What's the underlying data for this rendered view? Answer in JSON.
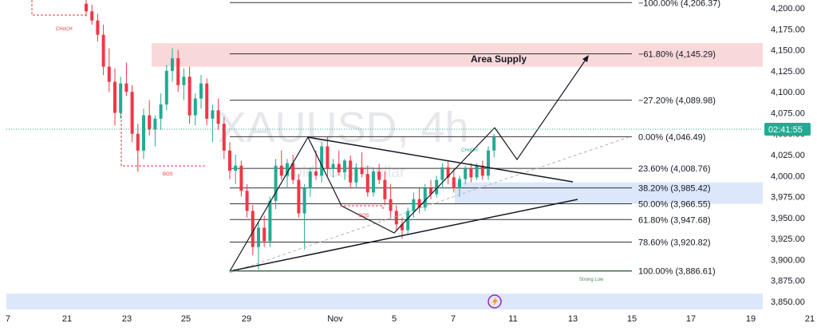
{
  "colors": {
    "up": "#22ab94",
    "down": "#f23645",
    "fib_line": "#333333",
    "supply_zone": "#f8d4d6",
    "demand_zone": "#d8e4fb",
    "price_tag": "#22ab94",
    "watermark": "#d1d4dc",
    "pattern": "#131722",
    "trend_dashed": "#b2b5be",
    "event_icon": "#9c27b0"
  },
  "watermark": {
    "symbol": "XAUUSD, 4h",
    "subtitle": "Gold / U.S. Dollar"
  },
  "price_tag": {
    "label": "02:41:55",
    "price": 4046.49
  },
  "area_supply": {
    "label": "Area Supply",
    "from": 4130,
    "to": 4158
  },
  "demand_zone": {
    "from": 3966.5,
    "to": 3992
  },
  "labels": {
    "choch_top": "CHoCH",
    "bos_left": "BOS",
    "bos_right": "BOS",
    "choch_right": "CHoCH",
    "strong_low": "Strong Low"
  },
  "event_icon": "lightning-event-icon",
  "chart_data": {
    "type": "candlestick",
    "symbol": "XAUUSD",
    "timeframe": "4h",
    "x_tick_labels": [
      "7",
      "21",
      "23",
      "25",
      "29",
      "Nov",
      "5",
      "7",
      "11",
      "13",
      "15",
      "17",
      "19",
      "21"
    ],
    "y_tick_labels": [
      "3,850.00",
      "3,875.00",
      "3,900.00",
      "3,925.00",
      "3,950.00",
      "3,975.00",
      "4,000.00",
      "4,025.00",
      "4,050.00",
      "4,075.00",
      "4,100.00",
      "4,125.00",
      "4,150.00",
      "4,175.00",
      "4,200.00"
    ],
    "y_ticks": [
      3850,
      3875,
      3900,
      3925,
      3950,
      3975,
      4000,
      4025,
      4050,
      4075,
      4100,
      4125,
      4150,
      4175,
      4200
    ],
    "ylim": [
      3840,
      4212
    ],
    "fibonacci": [
      {
        "label": "−100.00% (4,206.37)",
        "price": 4206.37
      },
      {
        "label": "−61.80% (4,145.29)",
        "price": 4145.29
      },
      {
        "label": "−27.20% (4,089.98)",
        "price": 4089.98
      },
      {
        "label": "0.00% (4,046.49)",
        "price": 4046.49
      },
      {
        "label": "23.60% (4,008.76)",
        "price": 4008.76
      },
      {
        "label": "38.20% (3,985.42)",
        "price": 3985.42
      },
      {
        "label": "50.00% (3,966.55)",
        "price": 3966.55
      },
      {
        "label": "61.80% (3,947.68)",
        "price": 3947.68
      },
      {
        "label": "78.60% (3,920.82)",
        "price": 3920.82
      },
      {
        "label": "100.00% (3,886.61)",
        "price": 3886.61
      }
    ],
    "candles_ohlc": [
      [
        4205,
        4218,
        4190,
        4196
      ],
      [
        4196,
        4204,
        4180,
        4185
      ],
      [
        4185,
        4193,
        4160,
        4168
      ],
      [
        4168,
        4180,
        4120,
        4130
      ],
      [
        4130,
        4152,
        4100,
        4112
      ],
      [
        4112,
        4128,
        4060,
        4075
      ],
      [
        4075,
        4118,
        4068,
        4110
      ],
      [
        4110,
        4135,
        4095,
        4100
      ],
      [
        4100,
        4108,
        4040,
        4050
      ],
      [
        4050,
        4062,
        4005,
        4030
      ],
      [
        4030,
        4080,
        4020,
        4072
      ],
      [
        4072,
        4090,
        4048,
        4055
      ],
      [
        4055,
        4072,
        4035,
        4068
      ],
      [
        4068,
        4098,
        4055,
        4085
      ],
      [
        4085,
        4132,
        4078,
        4125
      ],
      [
        4125,
        4152,
        4112,
        4140
      ],
      [
        4140,
        4150,
        4100,
        4108
      ],
      [
        4108,
        4128,
        4090,
        4118
      ],
      [
        4118,
        4130,
        4062,
        4072
      ],
      [
        4072,
        4098,
        4060,
        4092
      ],
      [
        4092,
        4120,
        4080,
        4110
      ],
      [
        4110,
        4116,
        4060,
        4068
      ],
      [
        4068,
        4085,
        4040,
        4078
      ],
      [
        4078,
        4092,
        4055,
        4062
      ],
      [
        4062,
        4070,
        4020,
        4030
      ],
      [
        4030,
        4040,
        3996,
        4006
      ],
      [
        4006,
        4025,
        3990,
        4012
      ],
      [
        4012,
        4018,
        3975,
        3982
      ],
      [
        3982,
        3990,
        3950,
        3958
      ],
      [
        3958,
        3965,
        3905,
        3915
      ],
      [
        3915,
        3945,
        3888,
        3938
      ],
      [
        3938,
        3952,
        3915,
        3922
      ],
      [
        3922,
        3975,
        3915,
        3970
      ],
      [
        3970,
        4020,
        3960,
        4012
      ],
      [
        4012,
        4030,
        3995,
        4000
      ],
      [
        4000,
        4020,
        3985,
        4015
      ],
      [
        4015,
        4025,
        3990,
        3995
      ],
      [
        3995,
        4002,
        3950,
        3955
      ],
      [
        3955,
        3990,
        3912,
        3985
      ],
      [
        3985,
        4010,
        3975,
        4005
      ],
      [
        4005,
        4030,
        3995,
        4000
      ],
      [
        4000,
        4040,
        3992,
        4035
      ],
      [
        4035,
        4046,
        4000,
        4008
      ],
      [
        4008,
        4020,
        3998,
        4014
      ],
      [
        4014,
        4030,
        4000,
        4004
      ],
      [
        4004,
        4020,
        3995,
        4018
      ],
      [
        4018,
        4024,
        3985,
        3992
      ],
      [
        3992,
        4015,
        3985,
        4010
      ],
      [
        4010,
        4028,
        3998,
        4002
      ],
      [
        4002,
        4012,
        3975,
        3980
      ],
      [
        3980,
        4010,
        3975,
        4005
      ],
      [
        4005,
        4014,
        3990,
        3995
      ],
      [
        3995,
        4005,
        3965,
        3972
      ],
      [
        3972,
        3990,
        3950,
        3958
      ],
      [
        3958,
        3965,
        3935,
        3942
      ],
      [
        3942,
        3950,
        3925,
        3935
      ],
      [
        3935,
        3962,
        3930,
        3958
      ],
      [
        3958,
        3980,
        3950,
        3972
      ],
      [
        3972,
        3985,
        3955,
        3962
      ],
      [
        3962,
        3990,
        3958,
        3985
      ],
      [
        3985,
        3995,
        3972,
        3978
      ],
      [
        3978,
        4000,
        3974,
        3995
      ],
      [
        3995,
        4015,
        3985,
        4010
      ],
      [
        4010,
        4018,
        3990,
        3998
      ],
      [
        3998,
        4008,
        3980,
        3985
      ],
      [
        3985,
        4000,
        3975,
        3996
      ],
      [
        3996,
        4012,
        3990,
        4008
      ],
      [
        4008,
        4015,
        3992,
        3998
      ],
      [
        3998,
        4015,
        3995,
        4012
      ],
      [
        4012,
        4018,
        3995,
        4000
      ],
      [
        4000,
        4035,
        3995,
        4030
      ],
      [
        4030,
        4050,
        4022,
        4046
      ]
    ]
  }
}
